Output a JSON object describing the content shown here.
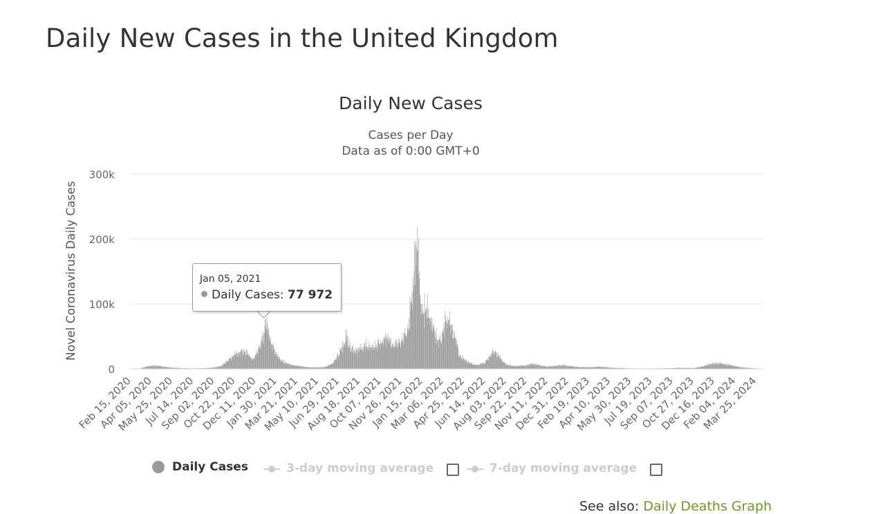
{
  "page": {
    "title": "Daily New Cases in the United Kingdom"
  },
  "chart_data": {
    "type": "bar",
    "title": "Daily New Cases",
    "subtitle_line1": "Cases per Day",
    "subtitle_line2": "Data as of 0:00 GMT+0",
    "xlabel": "",
    "ylabel": "Novel Coronavirus Daily Cases",
    "ylim": [
      0,
      300000
    ],
    "yticks": [
      0,
      100000,
      200000,
      300000
    ],
    "ytick_labels": [
      "0",
      "100k",
      "200k",
      "300k"
    ],
    "x_start": "2020-02-15",
    "x_end": "2024-04-13",
    "xtick_labels": [
      "Feb 15, 2020",
      "Apr 05, 2020",
      "May 25, 2020",
      "Jul 14, 2020",
      "Sep 02, 2020",
      "Oct 22, 2020",
      "Dec 11, 2020",
      "Jan 30, 2021",
      "Mar 21, 2021",
      "May 10, 2021",
      "Jun 29, 2021",
      "Aug 18, 2021",
      "Oct 07, 2021",
      "Nov 26, 2021",
      "Jan 15, 2022",
      "Mar 06, 2022",
      "Apr 25, 2022",
      "Jun 14, 2022",
      "Aug 03, 2022",
      "Sep 22, 2022",
      "Nov 11, 2022",
      "Dec 31, 2022",
      "Feb 19, 2023",
      "Apr 10, 2023",
      "May 30, 2023",
      "Jul 19, 2023",
      "Sep 07, 2023",
      "Oct 27, 2023",
      "Dec 16, 2023",
      "Feb 04, 2024",
      "Mar 25, 2024"
    ],
    "grid": true,
    "legend_position": "bottom-center",
    "series": [
      {
        "name": "Daily Cases",
        "color": "#999999",
        "points": [
          [
            "2020-02-15",
            0
          ],
          [
            "2020-03-10",
            500
          ],
          [
            "2020-03-25",
            3500
          ],
          [
            "2020-04-05",
            5000
          ],
          [
            "2020-04-20",
            4800
          ],
          [
            "2020-05-10",
            3000
          ],
          [
            "2020-05-25",
            1800
          ],
          [
            "2020-06-20",
            1000
          ],
          [
            "2020-07-14",
            700
          ],
          [
            "2020-08-10",
            1000
          ],
          [
            "2020-09-02",
            2000
          ],
          [
            "2020-09-20",
            4500
          ],
          [
            "2020-10-05",
            12000
          ],
          [
            "2020-10-22",
            22000
          ],
          [
            "2020-11-05",
            25000
          ],
          [
            "2020-11-15",
            28000
          ],
          [
            "2020-11-25",
            22000
          ],
          [
            "2020-12-05",
            15000
          ],
          [
            "2020-12-15",
            25000
          ],
          [
            "2020-12-25",
            42000
          ],
          [
            "2021-01-01",
            55000
          ],
          [
            "2021-01-05",
            77972
          ],
          [
            "2021-01-10",
            60000
          ],
          [
            "2021-01-20",
            38000
          ],
          [
            "2021-01-30",
            24000
          ],
          [
            "2021-02-10",
            14000
          ],
          [
            "2021-02-25",
            8000
          ],
          [
            "2021-03-10",
            6000
          ],
          [
            "2021-03-21",
            5000
          ],
          [
            "2021-04-10",
            3000
          ],
          [
            "2021-05-10",
            2200
          ],
          [
            "2021-05-25",
            2500
          ],
          [
            "2021-06-05",
            5500
          ],
          [
            "2021-06-15",
            9000
          ],
          [
            "2021-06-29",
            22000
          ],
          [
            "2021-07-10",
            35000
          ],
          [
            "2021-07-17",
            50000
          ],
          [
            "2021-07-25",
            35000
          ],
          [
            "2021-08-05",
            27000
          ],
          [
            "2021-08-18",
            30000
          ],
          [
            "2021-09-01",
            35000
          ],
          [
            "2021-09-15",
            34000
          ],
          [
            "2021-10-07",
            38000
          ],
          [
            "2021-10-20",
            48000
          ],
          [
            "2021-11-05",
            38000
          ],
          [
            "2021-11-26",
            42000
          ],
          [
            "2021-12-10",
            55000
          ],
          [
            "2021-12-18",
            90000
          ],
          [
            "2021-12-25",
            120000
          ],
          [
            "2021-12-29",
            190000
          ],
          [
            "2022-01-01",
            160000
          ],
          [
            "2022-01-04",
            218000
          ],
          [
            "2022-01-08",
            150000
          ],
          [
            "2022-01-15",
            85000
          ],
          [
            "2022-01-25",
            95000
          ],
          [
            "2022-02-01",
            80000
          ],
          [
            "2022-02-10",
            65000
          ],
          [
            "2022-02-20",
            45000
          ],
          [
            "2022-03-01",
            42000
          ],
          [
            "2022-03-06",
            60000
          ],
          [
            "2022-03-12",
            72000
          ],
          [
            "2022-03-18",
            80000
          ],
          [
            "2022-03-26",
            68000
          ],
          [
            "2022-04-05",
            48000
          ],
          [
            "2022-04-15",
            20000
          ],
          [
            "2022-04-25",
            15000
          ],
          [
            "2022-05-10",
            9000
          ],
          [
            "2022-05-25",
            6000
          ],
          [
            "2022-06-14",
            9000
          ],
          [
            "2022-06-25",
            18000
          ],
          [
            "2022-07-05",
            27000
          ],
          [
            "2022-07-12",
            25000
          ],
          [
            "2022-07-25",
            14000
          ],
          [
            "2022-08-03",
            7000
          ],
          [
            "2022-08-20",
            4500
          ],
          [
            "2022-09-22",
            5000
          ],
          [
            "2022-10-05",
            8000
          ],
          [
            "2022-10-20",
            6000
          ],
          [
            "2022-11-11",
            3500
          ],
          [
            "2022-12-20",
            6000
          ],
          [
            "2022-12-31",
            4500
          ],
          [
            "2023-01-20",
            3000
          ],
          [
            "2023-02-19",
            2500
          ],
          [
            "2023-03-20",
            3500
          ],
          [
            "2023-04-10",
            2000
          ],
          [
            "2023-05-30",
            700
          ],
          [
            "2023-07-19",
            600
          ],
          [
            "2023-09-07",
            1000
          ],
          [
            "2023-09-20",
            1800
          ],
          [
            "2023-10-27",
            1200
          ],
          [
            "2023-11-20",
            4000
          ],
          [
            "2023-12-05",
            7000
          ],
          [
            "2023-12-16",
            8500
          ],
          [
            "2024-01-05",
            8000
          ],
          [
            "2024-01-25",
            6000
          ],
          [
            "2024-02-04",
            4500
          ],
          [
            "2024-02-20",
            2500
          ],
          [
            "2024-03-10",
            1500
          ],
          [
            "2024-03-25",
            800
          ],
          [
            "2024-04-13",
            400
          ]
        ]
      }
    ],
    "tooltip": {
      "date": "Jan 05, 2021",
      "series_label": "Daily Cases: ",
      "value": "77 972"
    }
  },
  "legend": {
    "daily_cases": "Daily Cases",
    "ma3": "3-day moving average",
    "ma7": "7-day moving average"
  },
  "see_also": {
    "prefix": "See also: ",
    "link": "Daily Deaths Graph"
  }
}
